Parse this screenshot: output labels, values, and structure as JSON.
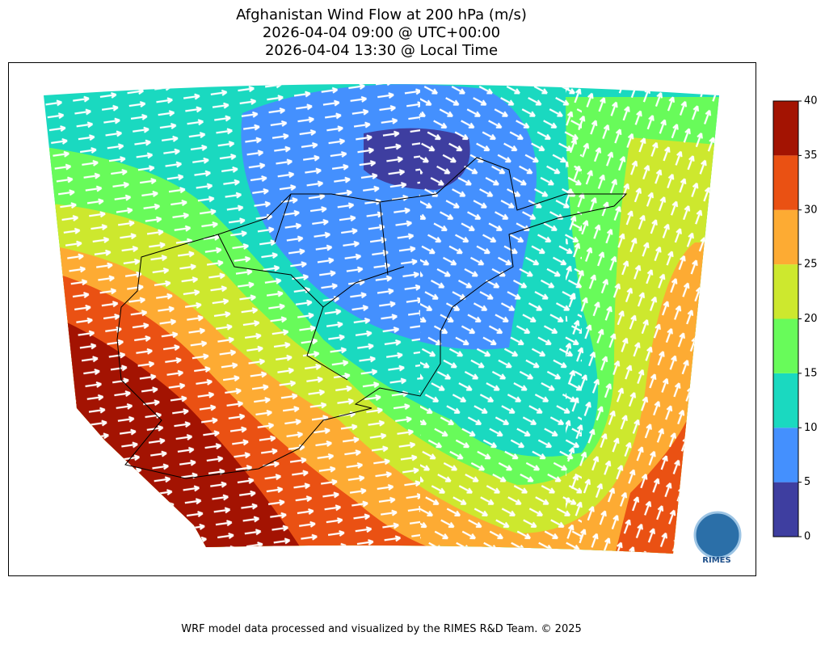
{
  "header": {
    "title_lines": [
      "Afghanistan Wind Flow at 200 hPa (m/s)",
      "2026-04-04 09:00 @ UTC+00:00",
      "2026-04-04 13:30 @ Local Time"
    ]
  },
  "colorbar": {
    "ticks": [
      0,
      5,
      10,
      15,
      20,
      25,
      30,
      35,
      40
    ],
    "colors": [
      "#3e3ea0",
      "#4490fe",
      "#1ad9c0",
      "#68fb5a",
      "#cde82e",
      "#fdab33",
      "#ea5113",
      "#a31302"
    ]
  },
  "logo": {
    "text": "RIMES"
  },
  "footer": "WRF model data processed and visualized by the RIMES R&D Team. © 2025"
}
